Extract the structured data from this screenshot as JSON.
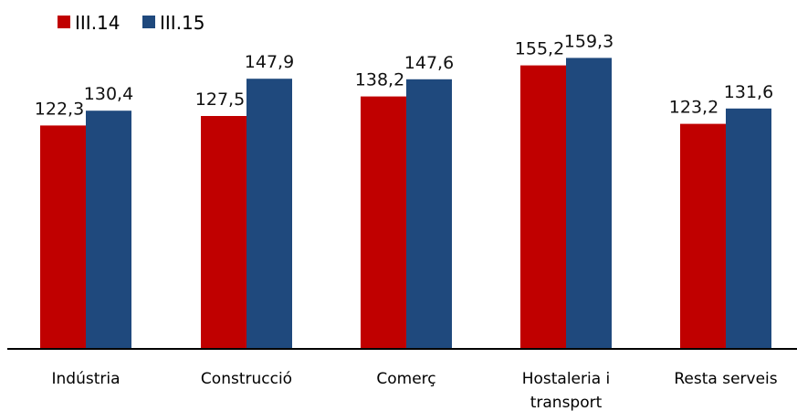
{
  "chart_data": {
    "type": "bar",
    "categories": [
      "Indústria",
      "Construcció",
      "Comerç",
      "Hostaleria i transport",
      "Resta serveis"
    ],
    "category_lines": [
      [
        "Indústria"
      ],
      [
        "Construcció"
      ],
      [
        "Comerç"
      ],
      [
        "Hostaleria i",
        "transport"
      ],
      [
        "Resta serveis"
      ]
    ],
    "series": [
      {
        "name": "III.14",
        "color": "#C00000",
        "values": [
          122.3,
          127.5,
          138.2,
          155.2,
          123.2
        ],
        "labels": [
          "122,3",
          "127,5",
          "138,2",
          "155,2",
          "123,2"
        ]
      },
      {
        "name": "III.15",
        "color": "#1F497D",
        "values": [
          130.4,
          147.9,
          147.6,
          159.3,
          131.6
        ],
        "labels": [
          "130,4",
          "147,9",
          "147,6",
          "159,3",
          "131,6"
        ]
      }
    ],
    "legend_position": "top-left",
    "grid": false
  }
}
